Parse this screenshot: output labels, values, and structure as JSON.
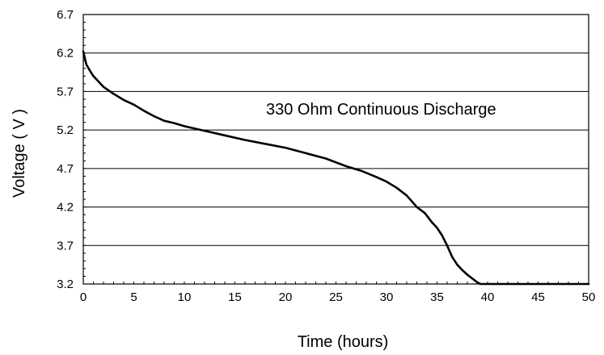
{
  "chart_data": {
    "type": "line",
    "title": "",
    "annotation": "330 Ohm Continuous Discharge",
    "xlabel": "Time (hours)",
    "ylabel": "Voltage ( V )",
    "xlim": [
      0,
      50
    ],
    "ylim": [
      3.2,
      6.7
    ],
    "x_ticks": [
      "0",
      "5",
      "10",
      "15",
      "20",
      "25",
      "30",
      "35",
      "40",
      "45",
      "50"
    ],
    "y_ticks": [
      "3.2",
      "3.7",
      "4.2",
      "4.7",
      "5.2",
      "5.7",
      "6.2",
      "6.7"
    ],
    "grid": "horizontal",
    "legend": "none",
    "series": [
      {
        "color": "#000000",
        "x": [
          0,
          0.3,
          0.7,
          1,
          1.5,
          2,
          3,
          4,
          5,
          6,
          7,
          8,
          9,
          10,
          12,
          14,
          16,
          18,
          20,
          22,
          24,
          26,
          27.5,
          29,
          30,
          31,
          32,
          33,
          33.8,
          34.5,
          35,
          35.5,
          36,
          36.5,
          37,
          37.5,
          38,
          38.5,
          39,
          39.3,
          40,
          42,
          44,
          46,
          48,
          50
        ],
        "y": [
          6.22,
          6.05,
          5.96,
          5.9,
          5.83,
          5.76,
          5.67,
          5.59,
          5.53,
          5.45,
          5.38,
          5.32,
          5.29,
          5.25,
          5.19,
          5.13,
          5.07,
          5.02,
          4.97,
          4.9,
          4.83,
          4.73,
          4.67,
          4.59,
          4.53,
          4.45,
          4.35,
          4.2,
          4.12,
          4.0,
          3.93,
          3.83,
          3.7,
          3.55,
          3.45,
          3.38,
          3.32,
          3.27,
          3.22,
          3.2,
          3.2,
          3.2,
          3.2,
          3.2,
          3.2,
          3.2
        ]
      }
    ]
  }
}
